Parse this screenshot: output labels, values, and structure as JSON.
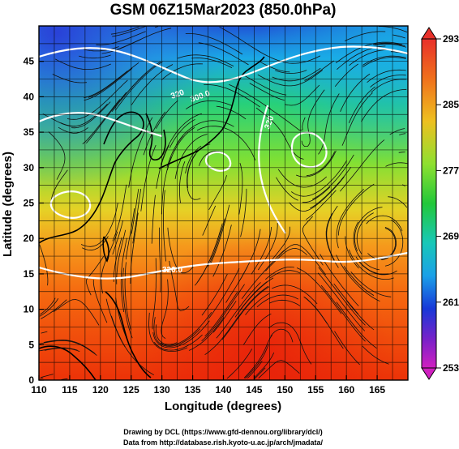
{
  "title": "GSM 06Z15Mar2023 (850.0hPa)",
  "xlabel": "Longitude (degrees)",
  "ylabel": "Latitude  (degrees)",
  "credits": [
    "Drawing by DCL (https://www.gfd-dennou.org/library/dcl/)",
    "Data from http://database.rish.kyoto-u.ac.jp/arch/jmadata/"
  ],
  "colorbar": {
    "ticks": [
      "293",
      "285",
      "277",
      "269",
      "261",
      "253"
    ]
  },
  "contour_labels": [
    "320",
    "300.0",
    "320",
    "320.0"
  ],
  "chart_data": {
    "type": "heatmap",
    "title": "GSM 06Z15Mar2023 (850.0hPa)",
    "xlabel": "Longitude (degrees)",
    "ylabel": "Latitude  (degrees)",
    "xlim": [
      110,
      170
    ],
    "ylim": [
      0,
      50
    ],
    "xticks": [
      110,
      115,
      120,
      125,
      130,
      135,
      140,
      145,
      150,
      155,
      160,
      165
    ],
    "yticks": [
      0,
      5,
      10,
      15,
      20,
      25,
      30,
      35,
      40,
      45
    ],
    "colorbar_range": [
      253,
      293
    ],
    "colorbar_ticks": [
      293,
      285,
      277,
      269,
      261,
      253
    ],
    "grid": true,
    "overlays": [
      "streamlines",
      "white contours",
      "coastlines"
    ]
  }
}
